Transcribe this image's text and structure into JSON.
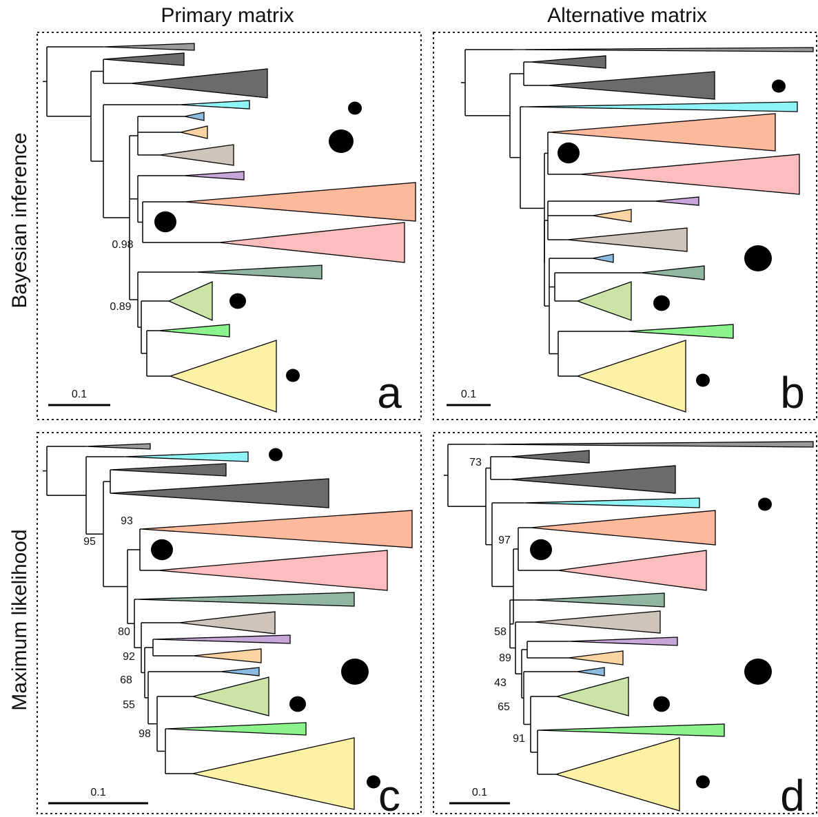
{
  "columns": [
    "Primary matrix",
    "Alternative matrix"
  ],
  "rows": [
    "Bayesian inference",
    "Maximum likelihood"
  ],
  "panels": [
    {
      "letter": "a",
      "scale": "0.1",
      "supports": [
        "0.98",
        "0.89"
      ]
    },
    {
      "letter": "b",
      "scale": "0.1"
    },
    {
      "letter": "c",
      "scale": "0.1",
      "supports": [
        "95",
        "93",
        "80",
        "92",
        "68",
        "55",
        "98"
      ]
    },
    {
      "letter": "d",
      "scale": "0.1",
      "supports": [
        "73",
        "97",
        "58",
        "89",
        "43",
        "65",
        "91"
      ]
    }
  ]
}
